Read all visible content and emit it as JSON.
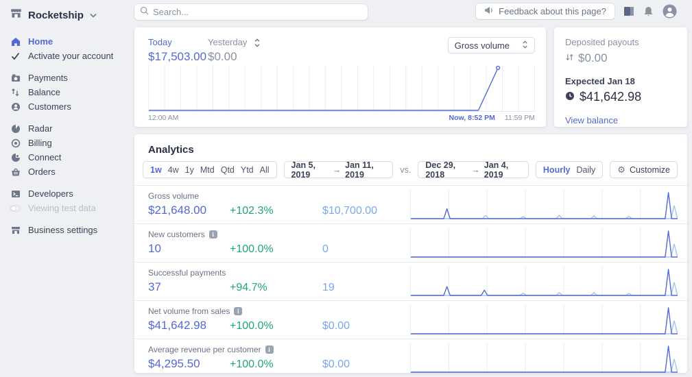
{
  "colors": {
    "accent": "#5469d4",
    "positive": "#1ea87a",
    "compare_blue": "#7aa7f0",
    "muted": "#8792a2",
    "grid": "#e9ecf1"
  },
  "brand": {
    "name": "Rocketship"
  },
  "topbar": {
    "search_placeholder": "Search...",
    "feedback_label": "Feedback about this page?"
  },
  "sidebar": {
    "items": [
      {
        "label": "Home",
        "icon": "home-icon",
        "active": true
      },
      {
        "label": "Activate your account",
        "icon": "check-icon"
      },
      {
        "label": "Payments",
        "icon": "payments-icon"
      },
      {
        "label": "Balance",
        "icon": "balance-icon"
      },
      {
        "label": "Customers",
        "icon": "customers-icon"
      },
      {
        "label": "Radar",
        "icon": "radar-icon"
      },
      {
        "label": "Billing",
        "icon": "billing-icon"
      },
      {
        "label": "Connect",
        "icon": "connect-icon"
      },
      {
        "label": "Orders",
        "icon": "orders-icon"
      },
      {
        "label": "Developers",
        "icon": "developers-icon"
      },
      {
        "label": "Viewing test data",
        "icon": "test-data-toggle"
      },
      {
        "label": "Business settings",
        "icon": "storefront-icon"
      }
    ]
  },
  "today_card": {
    "primary_label": "Today",
    "primary_value": "$17,503.00",
    "secondary_label": "Yesterday",
    "secondary_value": "$0.00",
    "metric_select_value": "Gross volume",
    "axis_start": "12:00 AM",
    "axis_now": "Now, 8:52 PM",
    "axis_end": "11:59 PM"
  },
  "payouts_card": {
    "title": "Deposited payouts",
    "deposited_value": "$0.00",
    "expected_label": "Expected Jan 18",
    "expected_value": "$41,642.98",
    "link_label": "View balance"
  },
  "analytics": {
    "title": "Analytics",
    "periods": [
      "1w",
      "4w",
      "1y",
      "Mtd",
      "Qtd",
      "Ytd",
      "All"
    ],
    "active_period": "1w",
    "range_start": "Jan 5, 2019",
    "range_arrow": "→",
    "range_end": "Jan 11, 2019",
    "vs_label": "vs.",
    "compare_start": "Dec 29, 2018",
    "compare_end": "Jan 4, 2019",
    "granularities": [
      "Hourly",
      "Daily"
    ],
    "active_granularity": "Hourly",
    "customize_label": "Customize",
    "gear_glyph": "⚙",
    "rows": [
      {
        "label": "Gross volume",
        "has_info": false,
        "value": "$21,648.00",
        "change": "+102.3%",
        "compare": "$10,700.00"
      },
      {
        "label": "New customers",
        "has_info": true,
        "value": "10",
        "change": "+100.0%",
        "compare": "0"
      },
      {
        "label": "Successful payments",
        "has_info": false,
        "value": "37",
        "change": "+94.7%",
        "compare": "19"
      },
      {
        "label": "Net volume from sales",
        "has_info": true,
        "value": "$41,642.98",
        "change": "+100.0%",
        "compare": "$0.00"
      },
      {
        "label": "Average revenue per customer",
        "has_info": true,
        "value": "$4,295.50",
        "change": "+100.0%",
        "compare": "$0.00"
      }
    ]
  },
  "chart_data": {
    "hero": {
      "type": "line",
      "title": "Gross volume today vs yesterday",
      "x_labels": [
        "12:00 AM",
        "Now, 8:52 PM",
        "11:59 PM"
      ],
      "grid_columns": 24,
      "baseline": true,
      "series": [
        {
          "name": "today",
          "color": "#5469d4",
          "points": [
            [
              0,
              0
            ],
            [
              0.855,
              0
            ],
            [
              0.906,
              1
            ]
          ],
          "end_dot": true
        }
      ]
    },
    "sparklines": [
      {
        "name": "gross-volume",
        "type": "line",
        "grid_columns": 7,
        "series": [
          {
            "name": "previous-period",
            "color": "#a3c2f7",
            "peaks": [
              [
                0.28,
                0.12
              ],
              [
                0.42,
                0.08
              ],
              [
                0.555,
                0.13
              ],
              [
                0.685,
                0.11
              ],
              [
                0.815,
                0.09
              ],
              [
                0.985,
                0.5
              ]
            ]
          },
          {
            "name": "current-period",
            "color": "#5469d4",
            "peaks": [
              [
                0.135,
                0.38
              ],
              [
                0.963,
                1.0
              ]
            ]
          }
        ]
      },
      {
        "name": "new-customers",
        "type": "line",
        "grid_columns": 7,
        "series": [
          {
            "name": "previous-period",
            "color": "#a3c2f7",
            "peaks": [
              [
                0.985,
                0.5
              ]
            ]
          },
          {
            "name": "current-period",
            "color": "#5469d4",
            "peaks": [
              [
                0.963,
                1.0
              ]
            ]
          }
        ]
      },
      {
        "name": "successful-payments",
        "type": "line",
        "grid_columns": 7,
        "series": [
          {
            "name": "previous-period",
            "color": "#a3c2f7",
            "peaks": [
              [
                0.42,
                0.09
              ],
              [
                0.555,
                0.11
              ],
              [
                0.685,
                0.11
              ],
              [
                0.815,
                0.08
              ],
              [
                0.985,
                0.5
              ]
            ]
          },
          {
            "name": "current-period",
            "color": "#5469d4",
            "peaks": [
              [
                0.135,
                0.34
              ],
              [
                0.275,
                0.2
              ],
              [
                0.963,
                1.0
              ]
            ]
          }
        ]
      },
      {
        "name": "net-volume-from-sales",
        "type": "line",
        "grid_columns": 7,
        "series": [
          {
            "name": "previous-period",
            "color": "#a3c2f7",
            "peaks": [
              [
                0.985,
                0.5
              ]
            ]
          },
          {
            "name": "current-period",
            "color": "#5469d4",
            "peaks": [
              [
                0.963,
                1.0
              ]
            ]
          }
        ]
      },
      {
        "name": "average-revenue-per-customer",
        "type": "line",
        "grid_columns": 7,
        "series": [
          {
            "name": "previous-period",
            "color": "#a3c2f7",
            "peaks": [
              [
                0.985,
                0.5
              ]
            ]
          },
          {
            "name": "current-period",
            "color": "#5469d4",
            "peaks": [
              [
                0.963,
                1.0
              ]
            ]
          }
        ]
      }
    ]
  }
}
